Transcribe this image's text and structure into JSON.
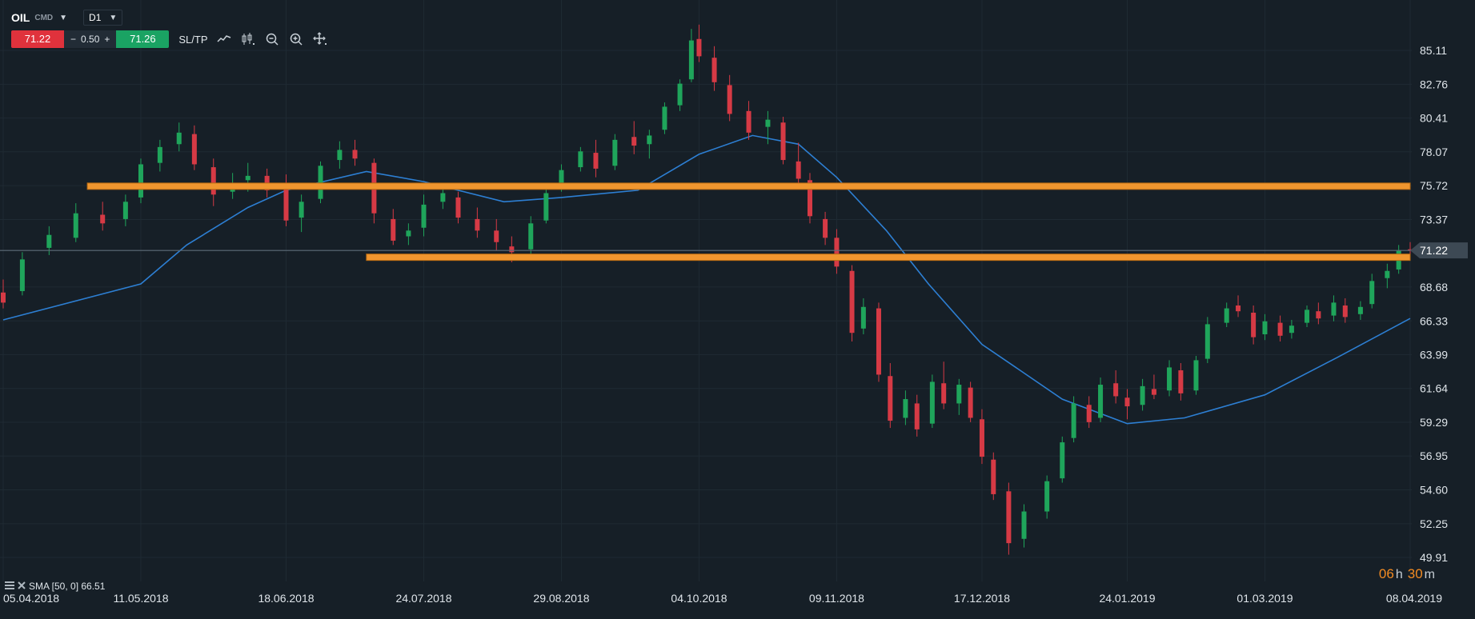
{
  "header": {
    "symbol": "OIL",
    "instrument_type": "CMD",
    "timeframe": "D1"
  },
  "trade_bar": {
    "sell_price": "71.22",
    "spread_minus": "−",
    "spread": "0.50",
    "spread_plus": "+",
    "buy_price": "71.26",
    "sl_tp_label": "SL/TP"
  },
  "tools": [
    {
      "name": "line-chart-icon"
    },
    {
      "name": "candles-icon"
    },
    {
      "name": "zoom-out-icon"
    },
    {
      "name": "zoom-in-icon"
    },
    {
      "name": "move-icon"
    }
  ],
  "indicator_legend": {
    "label": "SMA [50, 0] 66.51"
  },
  "countdown": {
    "hours": "06",
    "hours_unit": "h",
    "minutes": "30",
    "minutes_unit": "m"
  },
  "colors": {
    "background": "#161f27",
    "grid": "#1f2a33",
    "bull": "#1fa55b",
    "bear": "#d63a45",
    "sma": "#2d7fd3",
    "zone": "#f0962f",
    "zone_border": "#b86a12",
    "price_line": "#5d6c78",
    "current_price_tag": "#3d4954",
    "axis_text": "#dfe5ea"
  },
  "chart_data": {
    "type": "candlestick",
    "instrument": "OIL",
    "timeframe": "D1",
    "y_ticks": [
      85.11,
      82.76,
      80.41,
      78.07,
      75.72,
      73.37,
      71.22,
      68.68,
      66.33,
      63.99,
      61.64,
      59.29,
      56.95,
      54.6,
      52.25,
      49.91
    ],
    "x_ticks": [
      "05.04.2018",
      "11.05.2018",
      "18.06.2018",
      "24.07.2018",
      "29.08.2018",
      "04.10.2018",
      "09.11.2018",
      "17.12.2018",
      "24.01.2019",
      "01.03.2019",
      "08.04.2019"
    ],
    "x_range": [
      "05.04.2018",
      "08.04.2019"
    ],
    "y_range": [
      49.91,
      87.5
    ],
    "grid": true,
    "current_price": 71.22,
    "current_price_label": "71.22",
    "resistance_zones": [
      {
        "level": 75.68,
        "from": "27.04.2018",
        "to": "08.04.2019"
      },
      {
        "level": 70.75,
        "from": "09.07.2018",
        "to": "08.04.2019"
      }
    ],
    "sma": {
      "period": 50,
      "shift": 0,
      "last": 66.51,
      "points": [
        [
          "05.04.2018",
          66.4
        ],
        [
          "11.05.2018",
          68.9
        ],
        [
          "23.05.2018",
          71.6
        ],
        [
          "08.06.2018",
          74.2
        ],
        [
          "18.06.2018",
          75.4
        ],
        [
          "09.07.2018",
          76.7
        ],
        [
          "24.07.2018",
          76.0
        ],
        [
          "14.08.2018",
          74.6
        ],
        [
          "29.08.2018",
          74.9
        ],
        [
          "18.09.2018",
          75.4
        ],
        [
          "04.10.2018",
          77.9
        ],
        [
          "18.10.2018",
          79.2
        ],
        [
          "30.10.2018",
          78.6
        ],
        [
          "09.11.2018",
          76.3
        ],
        [
          "22.11.2018",
          72.6
        ],
        [
          "03.12.2018",
          68.9
        ],
        [
          "17.12.2018",
          64.7
        ],
        [
          "07.01.2019",
          60.9
        ],
        [
          "24.01.2019",
          59.2
        ],
        [
          "08.02.2019",
          59.6
        ],
        [
          "01.03.2019",
          61.2
        ],
        [
          "20.03.2019",
          63.8
        ],
        [
          "08.04.2019",
          66.5
        ]
      ]
    },
    "candles": [
      [
        "05.04.2018",
        68.3,
        69.2,
        67.2,
        67.6
      ],
      [
        "10.04.2018",
        68.4,
        71.1,
        68.1,
        70.6
      ],
      [
        "17.04.2018",
        71.4,
        72.9,
        70.9,
        72.3
      ],
      [
        "24.04.2018",
        72.1,
        74.5,
        71.8,
        73.8
      ],
      [
        "01.05.2018",
        73.7,
        74.6,
        72.6,
        73.1
      ],
      [
        "07.05.2018",
        73.4,
        75.1,
        72.9,
        74.6
      ],
      [
        "11.05.2018",
        74.9,
        77.6,
        74.5,
        77.2
      ],
      [
        "16.05.2018",
        77.3,
        78.9,
        76.7,
        78.4
      ],
      [
        "21.05.2018",
        78.6,
        80.1,
        78.1,
        79.4
      ],
      [
        "25.05.2018",
        79.3,
        79.9,
        76.8,
        77.2
      ],
      [
        "30.05.2018",
        77.0,
        77.6,
        74.3,
        75.1
      ],
      [
        "04.06.2018",
        75.3,
        76.6,
        74.8,
        75.9
      ],
      [
        "08.06.2018",
        76.1,
        77.3,
        75.3,
        76.4
      ],
      [
        "13.06.2018",
        76.4,
        76.9,
        74.9,
        75.4
      ],
      [
        "18.06.2018",
        75.7,
        76.5,
        72.9,
        73.3
      ],
      [
        "22.06.2018",
        73.5,
        75.1,
        72.5,
        74.6
      ],
      [
        "27.06.2018",
        74.8,
        77.4,
        74.5,
        77.1
      ],
      [
        "02.07.2018",
        77.5,
        78.8,
        76.9,
        78.2
      ],
      [
        "06.07.2018",
        78.2,
        78.9,
        77.1,
        77.6
      ],
      [
        "11.07.2018",
        77.3,
        77.6,
        73.1,
        73.8
      ],
      [
        "16.07.2018",
        73.4,
        74.1,
        71.6,
        71.9
      ],
      [
        "20.07.2018",
        72.2,
        73.1,
        71.6,
        72.6
      ],
      [
        "24.07.2018",
        72.8,
        75.1,
        72.2,
        74.4
      ],
      [
        "29.07.2018",
        74.6,
        75.8,
        74.1,
        75.2
      ],
      [
        "02.08.2018",
        74.9,
        75.3,
        73.1,
        73.5
      ],
      [
        "07.08.2018",
        73.4,
        74.2,
        72.1,
        72.6
      ],
      [
        "12.08.2018",
        72.6,
        73.4,
        71.2,
        71.8
      ],
      [
        "16.08.2018",
        71.5,
        72.2,
        70.4,
        71.1
      ],
      [
        "21.08.2018",
        71.3,
        73.6,
        70.9,
        73.1
      ],
      [
        "25.08.2018",
        73.3,
        75.6,
        73.1,
        75.2
      ],
      [
        "29.08.2018",
        75.6,
        77.2,
        75.3,
        76.8
      ],
      [
        "03.09.2018",
        77.0,
        78.4,
        76.7,
        78.1
      ],
      [
        "07.09.2018",
        78.0,
        78.9,
        76.3,
        76.9
      ],
      [
        "12.09.2018",
        77.1,
        79.3,
        76.8,
        78.9
      ],
      [
        "17.09.2018",
        79.1,
        80.2,
        77.9,
        78.5
      ],
      [
        "21.09.2018",
        78.6,
        79.6,
        77.6,
        79.2
      ],
      [
        "25.09.2018",
        79.6,
        81.5,
        79.3,
        81.2
      ],
      [
        "29.09.2018",
        81.3,
        83.1,
        80.9,
        82.8
      ],
      [
        "02.10.2018",
        83.1,
        86.6,
        82.9,
        85.8
      ],
      [
        "04.10.2018",
        85.9,
        86.9,
        84.3,
        84.7
      ],
      [
        "08.10.2018",
        84.6,
        85.4,
        82.3,
        82.9
      ],
      [
        "12.10.2018",
        82.7,
        83.4,
        80.2,
        80.7
      ],
      [
        "17.10.2018",
        80.9,
        81.6,
        78.9,
        79.4
      ],
      [
        "22.10.2018",
        79.8,
        80.9,
        78.6,
        80.3
      ],
      [
        "26.10.2018",
        80.1,
        80.5,
        77.2,
        77.5
      ],
      [
        "30.10.2018",
        77.4,
        78.7,
        75.6,
        76.2
      ],
      [
        "02.11.2018",
        76.1,
        76.6,
        73.1,
        73.6
      ],
      [
        "06.11.2018",
        73.4,
        73.9,
        71.6,
        72.1
      ],
      [
        "09.11.2018",
        72.1,
        72.7,
        69.6,
        70.1
      ],
      [
        "13.11.2018",
        69.8,
        70.2,
        64.9,
        65.5
      ],
      [
        "16.11.2018",
        65.8,
        67.9,
        65.4,
        67.3
      ],
      [
        "20.11.2018",
        67.2,
        67.6,
        62.1,
        62.6
      ],
      [
        "23.11.2018",
        62.5,
        63.4,
        58.9,
        59.4
      ],
      [
        "27.11.2018",
        59.6,
        61.5,
        59.1,
        60.9
      ],
      [
        "30.11.2018",
        60.6,
        61.2,
        58.3,
        58.8
      ],
      [
        "04.12.2018",
        59.2,
        62.6,
        58.9,
        62.1
      ],
      [
        "07.12.2018",
        62.0,
        63.5,
        60.2,
        60.6
      ],
      [
        "11.12.2018",
        60.6,
        62.3,
        59.8,
        61.9
      ],
      [
        "14.12.2018",
        61.7,
        62.1,
        59.3,
        59.6
      ],
      [
        "17.12.2018",
        59.5,
        60.2,
        56.4,
        56.9
      ],
      [
        "20.12.2018",
        56.7,
        57.2,
        53.9,
        54.3
      ],
      [
        "24.12.2018",
        54.5,
        55.1,
        50.1,
        50.9
      ],
      [
        "28.12.2018",
        51.2,
        53.6,
        50.6,
        53.1
      ],
      [
        "03.01.2019",
        53.1,
        55.6,
        52.6,
        55.2
      ],
      [
        "07.01.2019",
        55.4,
        58.3,
        55.1,
        57.9
      ],
      [
        "10.01.2019",
        58.2,
        61.1,
        57.9,
        60.6
      ],
      [
        "14.01.2019",
        60.5,
        61.1,
        58.9,
        59.3
      ],
      [
        "17.01.2019",
        59.6,
        62.4,
        59.3,
        61.9
      ],
      [
        "21.01.2019",
        62.0,
        62.9,
        60.6,
        61.1
      ],
      [
        "24.01.2019",
        61.0,
        61.6,
        59.5,
        60.4
      ],
      [
        "28.01.2019",
        60.5,
        62.3,
        60.1,
        61.8
      ],
      [
        "31.01.2019",
        61.6,
        62.6,
        60.9,
        61.2
      ],
      [
        "04.02.2019",
        61.5,
        63.6,
        61.1,
        63.1
      ],
      [
        "07.02.2019",
        62.9,
        63.4,
        60.8,
        61.3
      ],
      [
        "11.02.2019",
        61.5,
        63.9,
        61.2,
        63.6
      ],
      [
        "14.02.2019",
        63.7,
        66.6,
        63.4,
        66.1
      ],
      [
        "19.02.2019",
        66.2,
        67.6,
        65.9,
        67.2
      ],
      [
        "22.02.2019",
        67.4,
        68.1,
        66.6,
        67.0
      ],
      [
        "26.02.2019",
        66.9,
        67.4,
        64.7,
        65.2
      ],
      [
        "01.03.2019",
        65.4,
        66.8,
        65.0,
        66.3
      ],
      [
        "05.03.2019",
        66.2,
        66.7,
        64.9,
        65.3
      ],
      [
        "08.03.2019",
        65.5,
        66.4,
        65.1,
        66.0
      ],
      [
        "12.03.2019",
        66.2,
        67.4,
        65.9,
        67.1
      ],
      [
        "15.03.2019",
        67.0,
        67.6,
        66.1,
        66.5
      ],
      [
        "19.03.2019",
        66.7,
        68.1,
        66.3,
        67.6
      ],
      [
        "22.03.2019",
        67.4,
        67.9,
        66.2,
        66.6
      ],
      [
        "26.03.2019",
        66.8,
        67.7,
        66.4,
        67.3
      ],
      [
        "29.03.2019",
        67.5,
        69.6,
        67.2,
        69.1
      ],
      [
        "02.04.2019",
        69.3,
        70.3,
        68.6,
        69.8
      ],
      [
        "05.04.2019",
        69.9,
        71.6,
        69.6,
        71.2
      ],
      [
        "08.04.2019",
        71.3,
        71.8,
        70.8,
        71.22
      ]
    ]
  }
}
